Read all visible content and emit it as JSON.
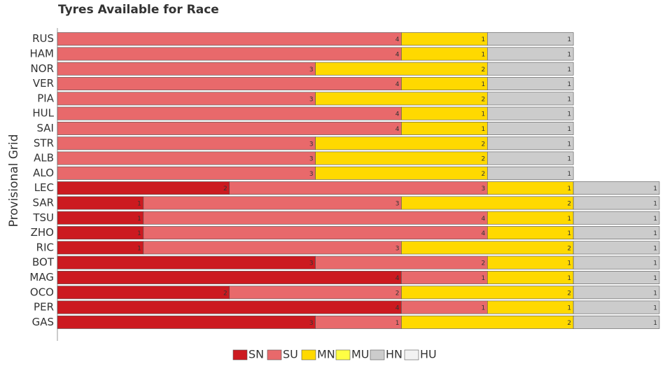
{
  "chart_data": {
    "type": "stacked-bar-horizontal",
    "title": "Tyres Available for Race",
    "y_label": "Provisional Grid",
    "categories": [
      "RUS",
      "HAM",
      "NOR",
      "VER",
      "PIA",
      "HUL",
      "SAI",
      "STR",
      "ALB",
      "ALO",
      "LEC",
      "SAR",
      "TSU",
      "ZHO",
      "RIC",
      "BOT",
      "MAG",
      "OCO",
      "PER",
      "GAS"
    ],
    "xlim": [
      0,
      7
    ],
    "legend": "bottom",
    "series": [
      {
        "name": "SN",
        "color": "#cc1a20",
        "values": [
          0,
          0,
          0,
          0,
          0,
          0,
          0,
          0,
          0,
          0,
          2,
          1,
          1,
          1,
          1,
          3,
          4,
          2,
          4,
          3
        ]
      },
      {
        "name": "SU",
        "color": "#e8696b",
        "values": [
          4,
          4,
          3,
          4,
          3,
          4,
          4,
          3,
          3,
          3,
          3,
          3,
          4,
          4,
          3,
          2,
          1,
          2,
          1,
          1
        ]
      },
      {
        "name": "MN",
        "color": "#ffd900",
        "values": [
          1,
          1,
          2,
          1,
          2,
          1,
          1,
          2,
          2,
          2,
          1,
          2,
          1,
          1,
          2,
          1,
          1,
          2,
          1,
          2
        ]
      },
      {
        "name": "MU",
        "color": "#ffff44",
        "values": [
          0,
          0,
          0,
          0,
          0,
          0,
          0,
          0,
          0,
          0,
          0,
          0,
          0,
          0,
          0,
          0,
          0,
          0,
          0,
          0
        ]
      },
      {
        "name": "HN",
        "color": "#cccccc",
        "values": [
          1,
          1,
          1,
          1,
          1,
          1,
          1,
          1,
          1,
          1,
          1,
          1,
          1,
          1,
          1,
          1,
          1,
          1,
          1,
          1
        ]
      },
      {
        "name": "HU",
        "color": "#f2f2f2",
        "values": [
          0,
          0,
          0,
          0,
          0,
          0,
          0,
          0,
          0,
          0,
          0,
          0,
          0,
          0,
          0,
          0,
          0,
          0,
          0,
          0
        ]
      }
    ]
  }
}
